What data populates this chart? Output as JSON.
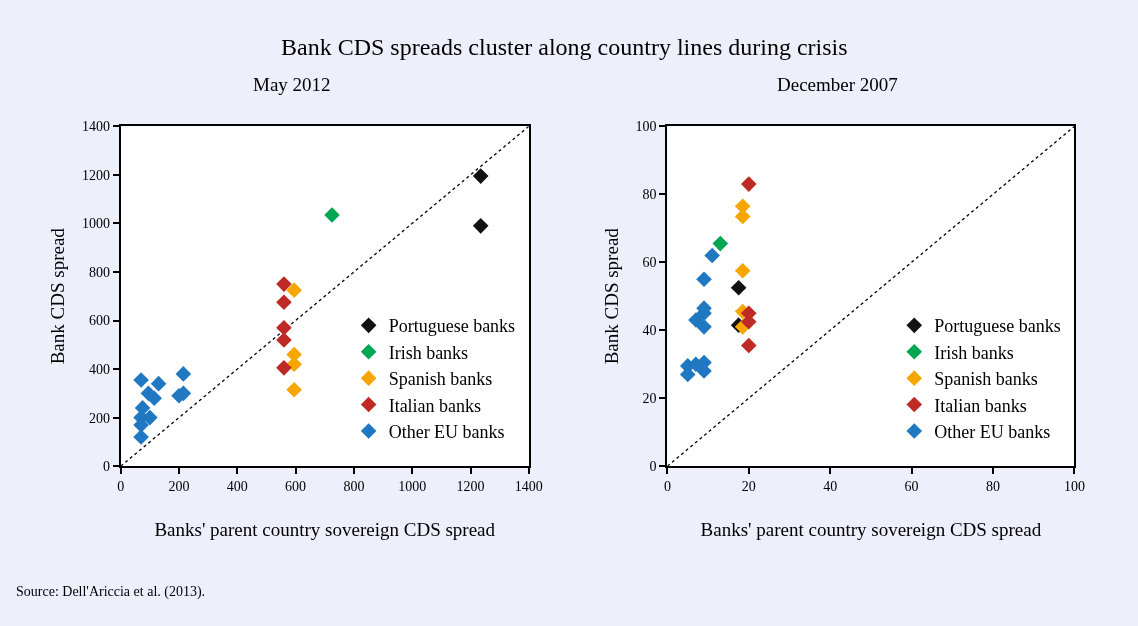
{
  "chart_data": [
    {
      "type": "scatter",
      "title": "Bank CDS spreads cluster along country lines during crisis",
      "subtitle": "May 2012",
      "xlabel": "Banks' parent country sovereign CDS spread",
      "ylabel": "Bank CDS spread",
      "xlim": [
        0,
        1400
      ],
      "ylim": [
        0,
        1400
      ],
      "xticks": [
        0,
        200,
        400,
        600,
        800,
        1000,
        1200,
        1400
      ],
      "yticks": [
        0,
        200,
        400,
        600,
        800,
        1000,
        1200,
        1400
      ],
      "grid": false,
      "legend": "bottom right",
      "marker": "diamond",
      "annotations": [
        "Source: Dell'Ariccia et al. (2013)."
      ],
      "series": [
        {
          "type": "line",
          "color": "#000000",
          "line_style": "dotted",
          "marker": "none",
          "x": [
            0,
            1400
          ],
          "values": [
            0,
            1400
          ]
        },
        {
          "name": "Portuguese banks",
          "color": "#111111",
          "x": [
            1235,
            1235
          ],
          "values": [
            1195,
            990
          ]
        },
        {
          "name": "Irish banks",
          "color": "#00a651",
          "x": [
            725
          ],
          "values": [
            1035
          ]
        },
        {
          "name": "Spanish banks",
          "color": "#f7a600",
          "x": [
            595,
            595,
            595,
            595
          ],
          "values": [
            725,
            460,
            420,
            315
          ]
        },
        {
          "name": "Italian banks",
          "color": "#be2a25",
          "x": [
            560,
            560,
            560,
            560,
            560
          ],
          "values": [
            750,
            675,
            570,
            520,
            405
          ]
        },
        {
          "name": "Other EU banks",
          "color": "#1f78c1",
          "x": [
            70,
            75,
            70,
            70,
            70,
            100,
            95,
            115,
            130,
            200,
            215,
            215
          ],
          "values": [
            355,
            240,
            200,
            170,
            120,
            200,
            300,
            280,
            340,
            290,
            380,
            300
          ]
        }
      ]
    },
    {
      "type": "scatter",
      "subtitle": "December 2007",
      "xlabel": "Banks' parent country sovereign CDS spread",
      "ylabel": "Bank CDS spread",
      "xlim": [
        0,
        100
      ],
      "ylim": [
        0,
        100
      ],
      "xticks": [
        0,
        20,
        40,
        60,
        80,
        100
      ],
      "yticks": [
        0,
        20,
        40,
        60,
        80,
        100
      ],
      "grid": false,
      "legend": "bottom right",
      "marker": "diamond",
      "series": [
        {
          "type": "line",
          "color": "#000000",
          "line_style": "dotted",
          "marker": "none",
          "x": [
            0,
            100
          ],
          "values": [
            0,
            100
          ]
        },
        {
          "name": "Portuguese banks",
          "color": "#111111",
          "x": [
            17.5,
            17.5
          ],
          "values": [
            52.5,
            41.5
          ]
        },
        {
          "name": "Irish banks",
          "color": "#00a651",
          "x": [
            13
          ],
          "values": [
            65.5
          ]
        },
        {
          "name": "Spanish banks",
          "color": "#f7a600",
          "x": [
            18.5,
            18.5,
            18.5,
            18.5,
            18.5
          ],
          "values": [
            76.5,
            73.5,
            57.5,
            45.5,
            41
          ]
        },
        {
          "name": "Italian banks",
          "color": "#be2a25",
          "x": [
            20,
            20,
            20,
            20
          ],
          "values": [
            83,
            45,
            42.5,
            35.5
          ]
        },
        {
          "name": "Other EU banks",
          "color": "#1f78c1",
          "x": [
            5,
            5,
            7,
            9,
            9,
            7,
            9,
            9,
            9,
            11,
            9
          ],
          "values": [
            29.5,
            27,
            30,
            30.5,
            28,
            43,
            45,
            46.5,
            41,
            62,
            55
          ]
        }
      ]
    }
  ]
}
